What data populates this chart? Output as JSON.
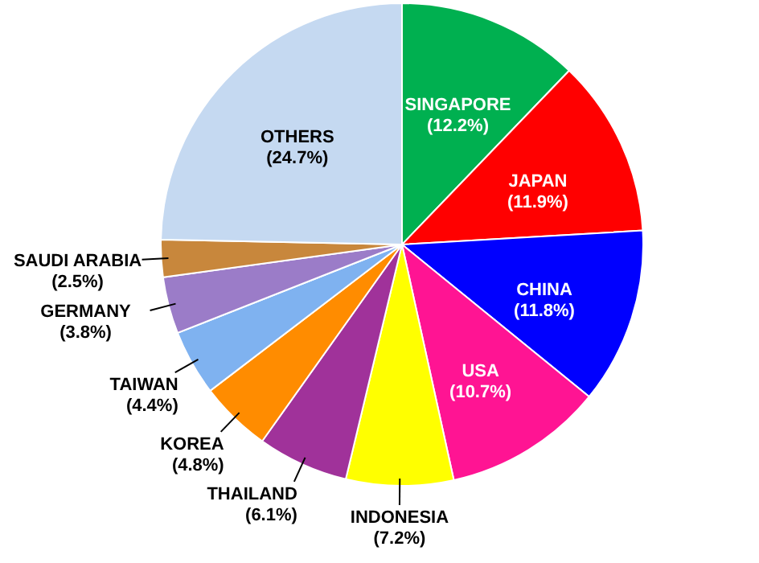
{
  "chart_data": {
    "type": "pie",
    "categories": [
      "SINGAPORE",
      "JAPAN",
      "CHINA",
      "USA",
      "INDONESIA",
      "THAILAND",
      "KOREA",
      "TAIWAN",
      "GERMANY",
      "SAUDI ARABIA",
      "OTHERS"
    ],
    "values": [
      12.2,
      11.9,
      11.8,
      10.7,
      7.2,
      6.1,
      4.8,
      4.4,
      3.8,
      2.5,
      24.7
    ],
    "colors": [
      "#00b050",
      "#ff0000",
      "#0000ff",
      "#ff1493",
      "#ffff00",
      "#a0329a",
      "#ff8c00",
      "#7fb2f0",
      "#9b7cc8",
      "#c8873c",
      "#c5d9f1"
    ],
    "value_labels": [
      "(12.2%)",
      "(11.9%)",
      "(11.8%)",
      "(10.7%)",
      "(7.2%)",
      "(6.1%)",
      "(4.8%)",
      "(4.4%)",
      "(3.8%)",
      "(2.5%)",
      "(24.7%)"
    ]
  }
}
